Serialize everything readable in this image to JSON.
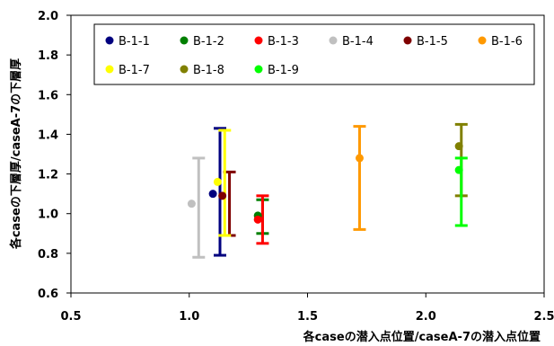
{
  "chart_data": {
    "type": "scatter",
    "xlabel": "各caseの潜入点位置/caseA-7の潜入点位置",
    "ylabel": "各caseの下層厚/caseA-7の下層厚",
    "xlim": [
      0.5,
      2.5
    ],
    "ylim": [
      0.6,
      2.0
    ],
    "x_ticks": [
      "0.5",
      "1.0",
      "1.5",
      "2.0",
      "2.5"
    ],
    "y_ticks": [
      "0.6",
      "0.8",
      "1.0",
      "1.2",
      "1.4",
      "1.6",
      "1.8",
      "2.0"
    ],
    "grid": false,
    "legend_position": "top",
    "series": [
      {
        "name": "B-1-1",
        "color": "#00007f",
        "x": 1.1,
        "y": 1.1,
        "err_x": 1.13,
        "err_low": 0.79,
        "err_high": 1.43
      },
      {
        "name": "B-1-2",
        "color": "#007f00",
        "x": 1.29,
        "y": 0.99,
        "err_x": 1.31,
        "err_low": 0.9,
        "err_high": 1.07
      },
      {
        "name": "B-1-3",
        "color": "#ff0000",
        "x": 1.29,
        "y": 0.97,
        "err_x": 1.31,
        "err_low": 0.85,
        "err_high": 1.09
      },
      {
        "name": "B-1-4",
        "color": "#c0c0c0",
        "x": 1.01,
        "y": 1.05,
        "err_x": 1.04,
        "err_low": 0.78,
        "err_high": 1.28
      },
      {
        "name": "B-1-5",
        "color": "#7f0000",
        "x": 1.14,
        "y": 1.09,
        "err_x": 1.17,
        "err_low": 0.89,
        "err_high": 1.21
      },
      {
        "name": "B-1-6",
        "color": "#ff9900",
        "x": 1.72,
        "y": 1.28,
        "err_x": 1.72,
        "err_low": 0.92,
        "err_high": 1.44
      },
      {
        "name": "B-1-7",
        "color": "#ffff00",
        "x": 1.12,
        "y": 1.16,
        "err_x": 1.15,
        "err_low": 0.89,
        "err_high": 1.42
      },
      {
        "name": "B-1-8",
        "color": "#808000",
        "x": 2.14,
        "y": 1.34,
        "err_x": 2.15,
        "err_low": 1.09,
        "err_high": 1.45
      },
      {
        "name": "B-1-9",
        "color": "#00ff00",
        "x": 2.14,
        "y": 1.22,
        "err_x": 2.15,
        "err_low": 0.94,
        "err_high": 1.28
      }
    ]
  }
}
